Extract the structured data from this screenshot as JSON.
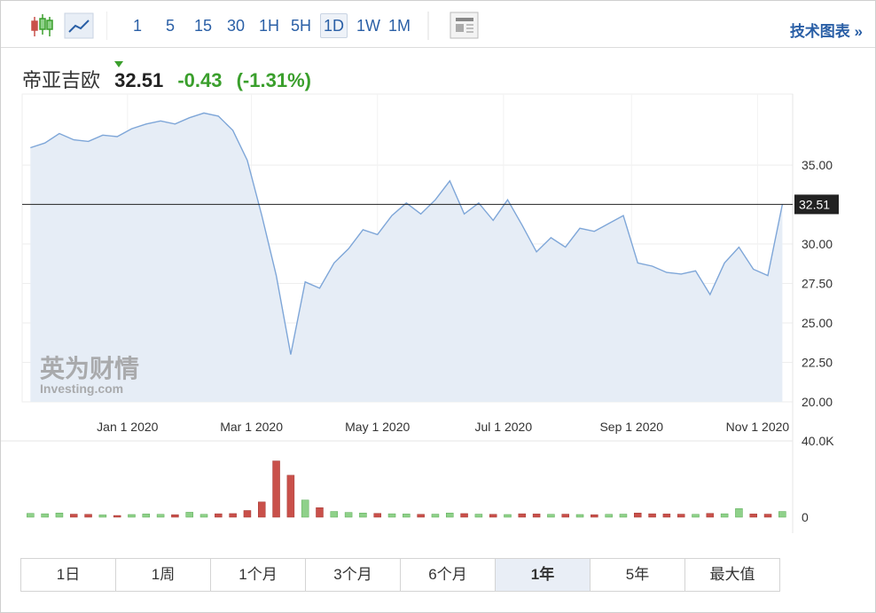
{
  "toolbar": {
    "intervals": [
      "1",
      "5",
      "15",
      "30",
      "1H",
      "5H",
      "1D",
      "1W",
      "1M"
    ],
    "active_interval": "1D",
    "link": "技术图表 »"
  },
  "header": {
    "name": "帝亚吉欧",
    "price": 32.51,
    "change": -0.43,
    "change_percent": {
      "value": -1.31,
      "label": "(-1.31%)"
    }
  },
  "watermark": {
    "brand": "英为财情",
    "site": "Investing.com"
  },
  "ranges": [
    "1日",
    "1周",
    "1个月",
    "3个月",
    "6个月",
    "1年",
    "5年",
    "最大值"
  ],
  "active_range": "1年",
  "chart_data": [
    {
      "type": "line",
      "color": "#7ea6d8",
      "fill": "#e6edf6",
      "grid": true,
      "x": [
        "2019-11-15",
        "2019-11-22",
        "2019-11-29",
        "2019-12-06",
        "2019-12-13",
        "2019-12-20",
        "2019-12-27",
        "2020-01-03",
        "2020-01-10",
        "2020-01-17",
        "2020-01-24",
        "2020-01-31",
        "2020-02-07",
        "2020-02-14",
        "2020-02-21",
        "2020-02-28",
        "2020-03-06",
        "2020-03-13",
        "2020-03-20",
        "2020-03-27",
        "2020-04-03",
        "2020-04-10",
        "2020-04-17",
        "2020-04-24",
        "2020-05-01",
        "2020-05-08",
        "2020-05-15",
        "2020-05-22",
        "2020-05-29",
        "2020-06-05",
        "2020-06-12",
        "2020-06-19",
        "2020-06-26",
        "2020-07-03",
        "2020-07-10",
        "2020-07-17",
        "2020-07-24",
        "2020-07-31",
        "2020-08-07",
        "2020-08-14",
        "2020-08-21",
        "2020-08-28",
        "2020-09-04",
        "2020-09-11",
        "2020-09-18",
        "2020-09-25",
        "2020-10-02",
        "2020-10-09",
        "2020-10-16",
        "2020-10-23",
        "2020-10-30",
        "2020-11-06",
        "2020-11-13"
      ],
      "values": [
        36.1,
        36.4,
        37.0,
        36.6,
        36.5,
        36.9,
        36.8,
        37.3,
        37.6,
        37.8,
        37.6,
        38.0,
        38.3,
        38.1,
        37.2,
        35.3,
        31.8,
        28.0,
        23.0,
        27.6,
        27.2,
        28.8,
        29.7,
        30.9,
        30.6,
        31.8,
        32.6,
        31.9,
        32.8,
        34.0,
        31.9,
        32.6,
        31.5,
        32.8,
        31.2,
        29.5,
        30.4,
        29.8,
        31.0,
        30.8,
        31.3,
        31.8,
        28.8,
        28.6,
        28.2,
        28.1,
        28.3,
        26.8,
        28.8,
        29.8,
        28.4,
        28.0,
        32.51
      ],
      "xlim": [
        "2019-11-11",
        "2020-11-18"
      ],
      "xticks": [
        {
          "value": "2020-01-01",
          "label": "Jan 1 2020"
        },
        {
          "value": "2020-03-01",
          "label": "Mar 1 2020"
        },
        {
          "value": "2020-05-01",
          "label": "May 1 2020"
        },
        {
          "value": "2020-07-01",
          "label": "Jul 1 2020"
        },
        {
          "value": "2020-09-01",
          "label": "Sep 1 2020"
        },
        {
          "value": "2020-11-01",
          "label": "Nov 1 2020"
        }
      ],
      "ylim": [
        20,
        39.5
      ],
      "yticks": [
        {
          "value": 20,
          "label": "20.00"
        },
        {
          "value": 22.5,
          "label": "22.50"
        },
        {
          "value": 25,
          "label": "25.00"
        },
        {
          "value": 27.5,
          "label": "27.50"
        },
        {
          "value": 30,
          "label": "30.00"
        },
        {
          "value": 35,
          "label": "35.00"
        }
      ]
    },
    {
      "type": "bar",
      "up_color": "#8fd18a",
      "down_color": "#c9504a",
      "x": [
        "2019-11-15",
        "2019-11-22",
        "2019-11-29",
        "2019-12-06",
        "2019-12-13",
        "2019-12-20",
        "2019-12-27",
        "2020-01-03",
        "2020-01-10",
        "2020-01-17",
        "2020-01-24",
        "2020-01-31",
        "2020-02-07",
        "2020-02-14",
        "2020-02-21",
        "2020-02-28",
        "2020-03-06",
        "2020-03-13",
        "2020-03-20",
        "2020-03-27",
        "2020-04-03",
        "2020-04-10",
        "2020-04-17",
        "2020-04-24",
        "2020-05-01",
        "2020-05-08",
        "2020-05-15",
        "2020-05-22",
        "2020-05-29",
        "2020-06-05",
        "2020-06-12",
        "2020-06-19",
        "2020-06-26",
        "2020-07-03",
        "2020-07-10",
        "2020-07-17",
        "2020-07-24",
        "2020-07-31",
        "2020-08-07",
        "2020-08-14",
        "2020-08-21",
        "2020-08-28",
        "2020-09-04",
        "2020-09-11",
        "2020-09-18",
        "2020-09-25",
        "2020-10-02",
        "2020-10-09",
        "2020-10-16",
        "2020-10-23",
        "2020-10-30",
        "2020-11-06",
        "2020-11-13"
      ],
      "values": [
        2000,
        1800,
        2200,
        1600,
        1500,
        1200,
        900,
        1400,
        1700,
        1500,
        1300,
        2600,
        1500,
        1800,
        1900,
        3500,
        8000,
        29500,
        22000,
        9000,
        5000,
        3000,
        2500,
        2200,
        2000,
        1800,
        1700,
        1500,
        1600,
        2200,
        1900,
        1600,
        1500,
        1400,
        1800,
        1700,
        1500,
        1600,
        1400,
        1300,
        1500,
        1600,
        2200,
        1800,
        1700,
        1600,
        1500,
        2000,
        1800,
        4500,
        1700,
        1600,
        3000
      ],
      "xlim": [
        "2019-11-11",
        "2020-11-18"
      ],
      "ylim": [
        0,
        40000
      ],
      "yticks": [
        0,
        {
          "value": 40000,
          "label": "40.0K"
        }
      ]
    }
  ]
}
